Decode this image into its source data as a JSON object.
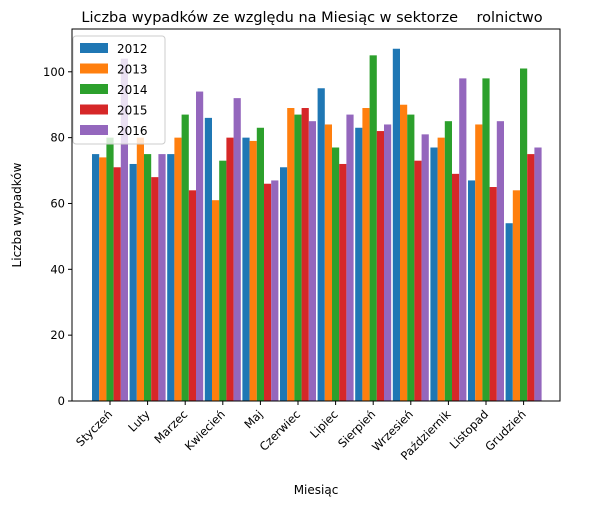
{
  "chart_data": {
    "type": "bar",
    "title": "Liczba wypadków ze względu na Miesiąc w sektorze    rolnictwo",
    "xlabel": "Miesiąc",
    "ylabel": "Liczba wypadków",
    "categories": [
      "Styczeń",
      "Luty",
      "Marzec",
      "Kwiecień",
      "Maj",
      "Czerwiec",
      "Lipiec",
      "Sierpień",
      "Wrzesień",
      "Październik",
      "Listopad",
      "Grudzień"
    ],
    "ylim": [
      0,
      113
    ],
    "yticks": [
      0,
      20,
      40,
      60,
      80,
      100
    ],
    "grid": false,
    "legend_position": "top-left",
    "series": [
      {
        "name": "2012",
        "color": "#1f77b4",
        "values": [
          75,
          72,
          75,
          86,
          80,
          71,
          95,
          83,
          107,
          77,
          67,
          54
        ]
      },
      {
        "name": "2013",
        "color": "#ff7f0e",
        "values": [
          74,
          80,
          80,
          61,
          79,
          89,
          84,
          89,
          90,
          80,
          84,
          64
        ]
      },
      {
        "name": "2014",
        "color": "#2ca02c",
        "values": [
          80,
          75,
          87,
          73,
          83,
          87,
          77,
          105,
          87,
          85,
          98,
          101
        ]
      },
      {
        "name": "2015",
        "color": "#d62728",
        "values": [
          71,
          68,
          64,
          80,
          66,
          89,
          72,
          82,
          73,
          69,
          65,
          75
        ]
      },
      {
        "name": "2016",
        "color": "#9467bd",
        "values": [
          104,
          75,
          94,
          92,
          67,
          85,
          87,
          84,
          81,
          98,
          85,
          77
        ]
      }
    ]
  }
}
